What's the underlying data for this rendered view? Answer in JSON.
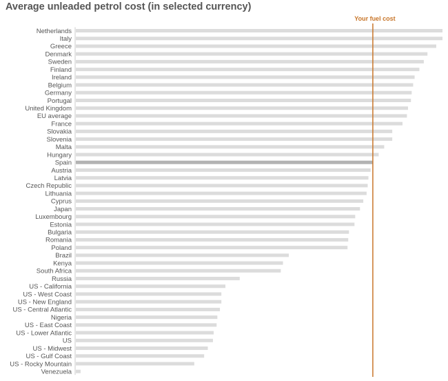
{
  "title": "Average unleaded petrol cost (in selected currency)",
  "marker_label": "Your fuel cost",
  "colors": {
    "bar": "#dcdcdc",
    "highlight_bar": "#b3b3b3",
    "marker": "#c8762a",
    "axis": "#cccccc",
    "text": "#555555"
  },
  "chart_data": {
    "type": "bar",
    "orientation": "horizontal",
    "title": "Average unleaded petrol cost (in selected currency)",
    "highlight": "Spain",
    "marker": {
      "label": "Your fuel cost",
      "value": 81
    },
    "xlim": [
      0,
      100
    ],
    "categories": [
      "Netherlands",
      "Italy",
      "Greece",
      "Denmark",
      "Sweden",
      "Finland",
      "Ireland",
      "Belgium",
      "Germany",
      "Portugal",
      "United Kingdom",
      "EU average",
      "France",
      "Slovakia",
      "Slovenia",
      "Malta",
      "Hungary",
      "Spain",
      "Austria",
      "Latvia",
      "Czech Republic",
      "Lithuania",
      "Cyprus",
      "Japan",
      "Luxembourg",
      "Estonia",
      "Bulgaria",
      "Romania",
      "Poland",
      "Brazil",
      "Kenya",
      "South Africa",
      "Russia",
      "US - California",
      "US - West Coast",
      "US - New England",
      "US - Central Atlantic",
      "Nigeria",
      "US - East Coast",
      "US - Lower Atlantic",
      "US",
      "US - Midwest",
      "US - Gulf Coast",
      "US - Rocky Mountain",
      "Venezuela"
    ],
    "values": [
      100,
      100,
      98.3,
      95.9,
      94.9,
      93.7,
      92.4,
      92.0,
      91.6,
      91.4,
      90.6,
      90.3,
      89.1,
      86.3,
      86.3,
      84.1,
      82.6,
      81.0,
      80.4,
      79.8,
      79.6,
      79.3,
      78.4,
      77.5,
      76.2,
      76.0,
      74.5,
      74.3,
      74.1,
      58.1,
      56.5,
      55.9,
      44.7,
      40.8,
      39.7,
      39.7,
      39.3,
      38.6,
      38.4,
      37.6,
      37.4,
      36.0,
      35.0,
      32.3,
      1.3
    ]
  }
}
